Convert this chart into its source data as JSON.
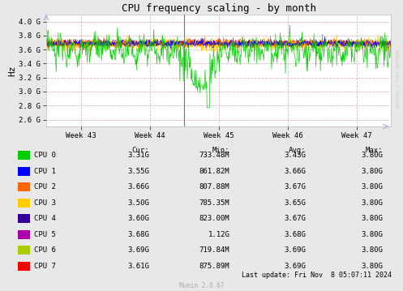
{
  "title": "CPU frequency scaling - by month",
  "ylabel": "Hz",
  "outer_bg": "#E8E8E8",
  "plot_bg_color": "#FFFFFF",
  "grid_color": "#DDBBBB",
  "x_ticks_labels": [
    "Week 43",
    "Week 44",
    "Week 45",
    "Week 46",
    "Week 47"
  ],
  "y_ticks": [
    2600000000,
    2800000000,
    3000000000,
    3200000000,
    3400000000,
    3600000000,
    3800000000,
    4000000000
  ],
  "y_tick_labels": [
    "2.6 G",
    "2.8 G",
    "3.0 G",
    "3.2 G",
    "3.4 G",
    "3.6 G",
    "3.8 G",
    "4.0 G"
  ],
  "ylim": [
    2500000000,
    4100000000
  ],
  "xlim": [
    0,
    5
  ],
  "cpu_colors": [
    "#00CC00",
    "#0000FF",
    "#FF6600",
    "#FFCC00",
    "#330099",
    "#AA00AA",
    "#AACC00",
    "#FF0000"
  ],
  "cpu_labels": [
    "CPU 0",
    "CPU 1",
    "CPU 2",
    "CPU 3",
    "CPU 4",
    "CPU 5",
    "CPU 6",
    "CPU 7"
  ],
  "legend_headers": [
    "Cur:",
    "Min:",
    "Avg:",
    "Max:"
  ],
  "legend_rows": [
    [
      "3.31G",
      "733.48M",
      "3.43G",
      "3.80G"
    ],
    [
      "3.55G",
      "861.82M",
      "3.66G",
      "3.80G"
    ],
    [
      "3.66G",
      "807.88M",
      "3.67G",
      "3.80G"
    ],
    [
      "3.50G",
      "785.35M",
      "3.65G",
      "3.80G"
    ],
    [
      "3.60G",
      "823.00M",
      "3.67G",
      "3.80G"
    ],
    [
      "3.68G",
      "1.12G",
      "3.68G",
      "3.80G"
    ],
    [
      "3.69G",
      "719.84M",
      "3.69G",
      "3.80G"
    ],
    [
      "3.61G",
      "875.89M",
      "3.69G",
      "3.80G"
    ]
  ],
  "last_update": "Last update: Fri Nov  8 05:07:11 2024",
  "munin_version": "Munin 2.0.67",
  "rrdtool_text": "RRDTOOL / TOBI OETIKER",
  "vline_x": 2.0,
  "n_points": 700
}
